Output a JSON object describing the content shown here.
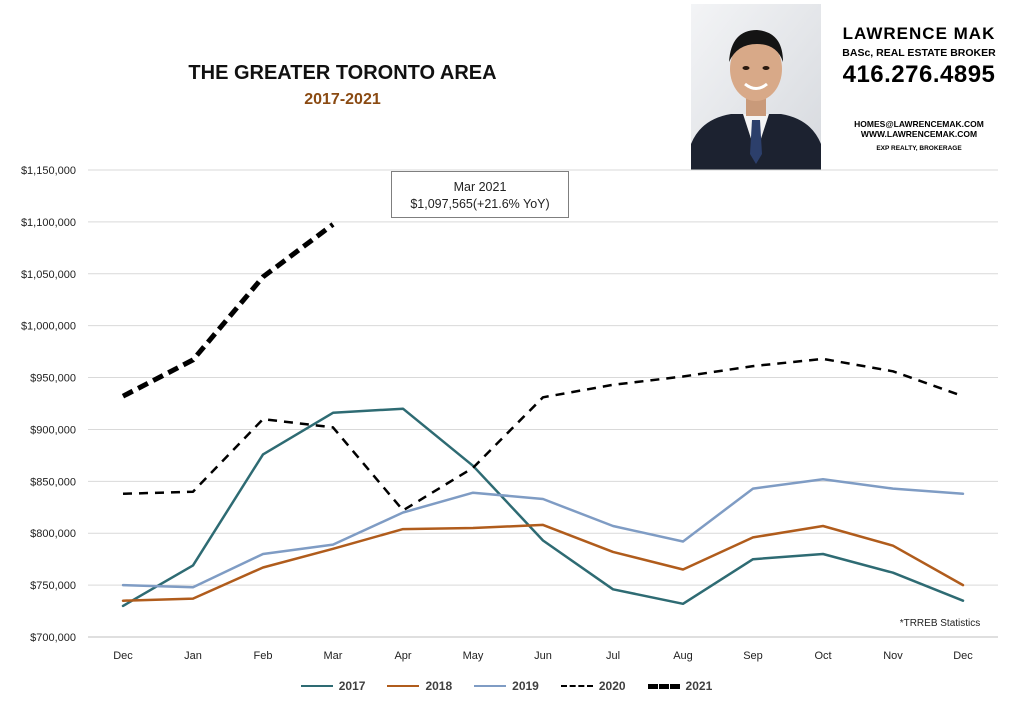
{
  "header": {
    "title": "THE GREATER TORONTO AREA",
    "subtitle": "2017-2021"
  },
  "agent": {
    "name": "LAWRENCE MAK",
    "role": "BASc, REAL ESTATE BROKER",
    "phone": "416.276.4895",
    "email": "HOMES@LAWRENCEMAK.COM",
    "website": "WWW.LAWRENCEMAK.COM",
    "brokerage": "EXP REALTY, BROKERAGE"
  },
  "callout": {
    "line1": "Mar 2021",
    "line2": "$1,097,565(+21.6%  YoY)"
  },
  "source_note": "*TRREB Statistics",
  "chart_data": {
    "type": "line",
    "categories": [
      "Dec",
      "Jan",
      "Feb",
      "Mar",
      "Apr",
      "May",
      "Jun",
      "Jul",
      "Aug",
      "Sep",
      "Oct",
      "Nov",
      "Dec"
    ],
    "ylim": [
      700000,
      1150000
    ],
    "yticks": [
      700000,
      750000,
      800000,
      850000,
      900000,
      950000,
      1000000,
      1050000,
      1100000,
      1150000
    ],
    "ytick_labels": [
      "$700,000",
      "$750,000",
      "$800,000",
      "$850,000",
      "$900,000",
      "$950,000",
      "$1,000,000",
      "$1,050,000",
      "$1,100,000",
      "$1,150,000"
    ],
    "grid": "horizontal",
    "legend_position": "bottom",
    "series": [
      {
        "name": "2017",
        "color": "#2e6b73",
        "style": "solid",
        "values": [
          730000,
          769000,
          876000,
          916000,
          920000,
          865000,
          793000,
          746000,
          732000,
          775000,
          780000,
          762000,
          735000
        ]
      },
      {
        "name": "2018",
        "color": "#b05c1c",
        "style": "solid",
        "values": [
          735000,
          737000,
          767000,
          785000,
          804000,
          805000,
          808000,
          782000,
          765000,
          796000,
          807000,
          788000,
          750000
        ]
      },
      {
        "name": "2019",
        "color": "#7f9cc4",
        "style": "solid",
        "values": [
          750000,
          748000,
          780000,
          789000,
          820000,
          839000,
          833000,
          807000,
          792000,
          843000,
          852000,
          843000,
          838000
        ]
      },
      {
        "name": "2020",
        "color": "#000000",
        "style": "dashed",
        "values": [
          838000,
          840000,
          910000,
          902000,
          822000,
          863000,
          931000,
          943000,
          951000,
          961000,
          968000,
          956000,
          932000
        ]
      },
      {
        "name": "2021",
        "color": "#000000",
        "style": "bold-dashed",
        "values": [
          932000,
          967000,
          1047000,
          1097565,
          null,
          null,
          null,
          null,
          null,
          null,
          null,
          null,
          null
        ]
      }
    ]
  }
}
